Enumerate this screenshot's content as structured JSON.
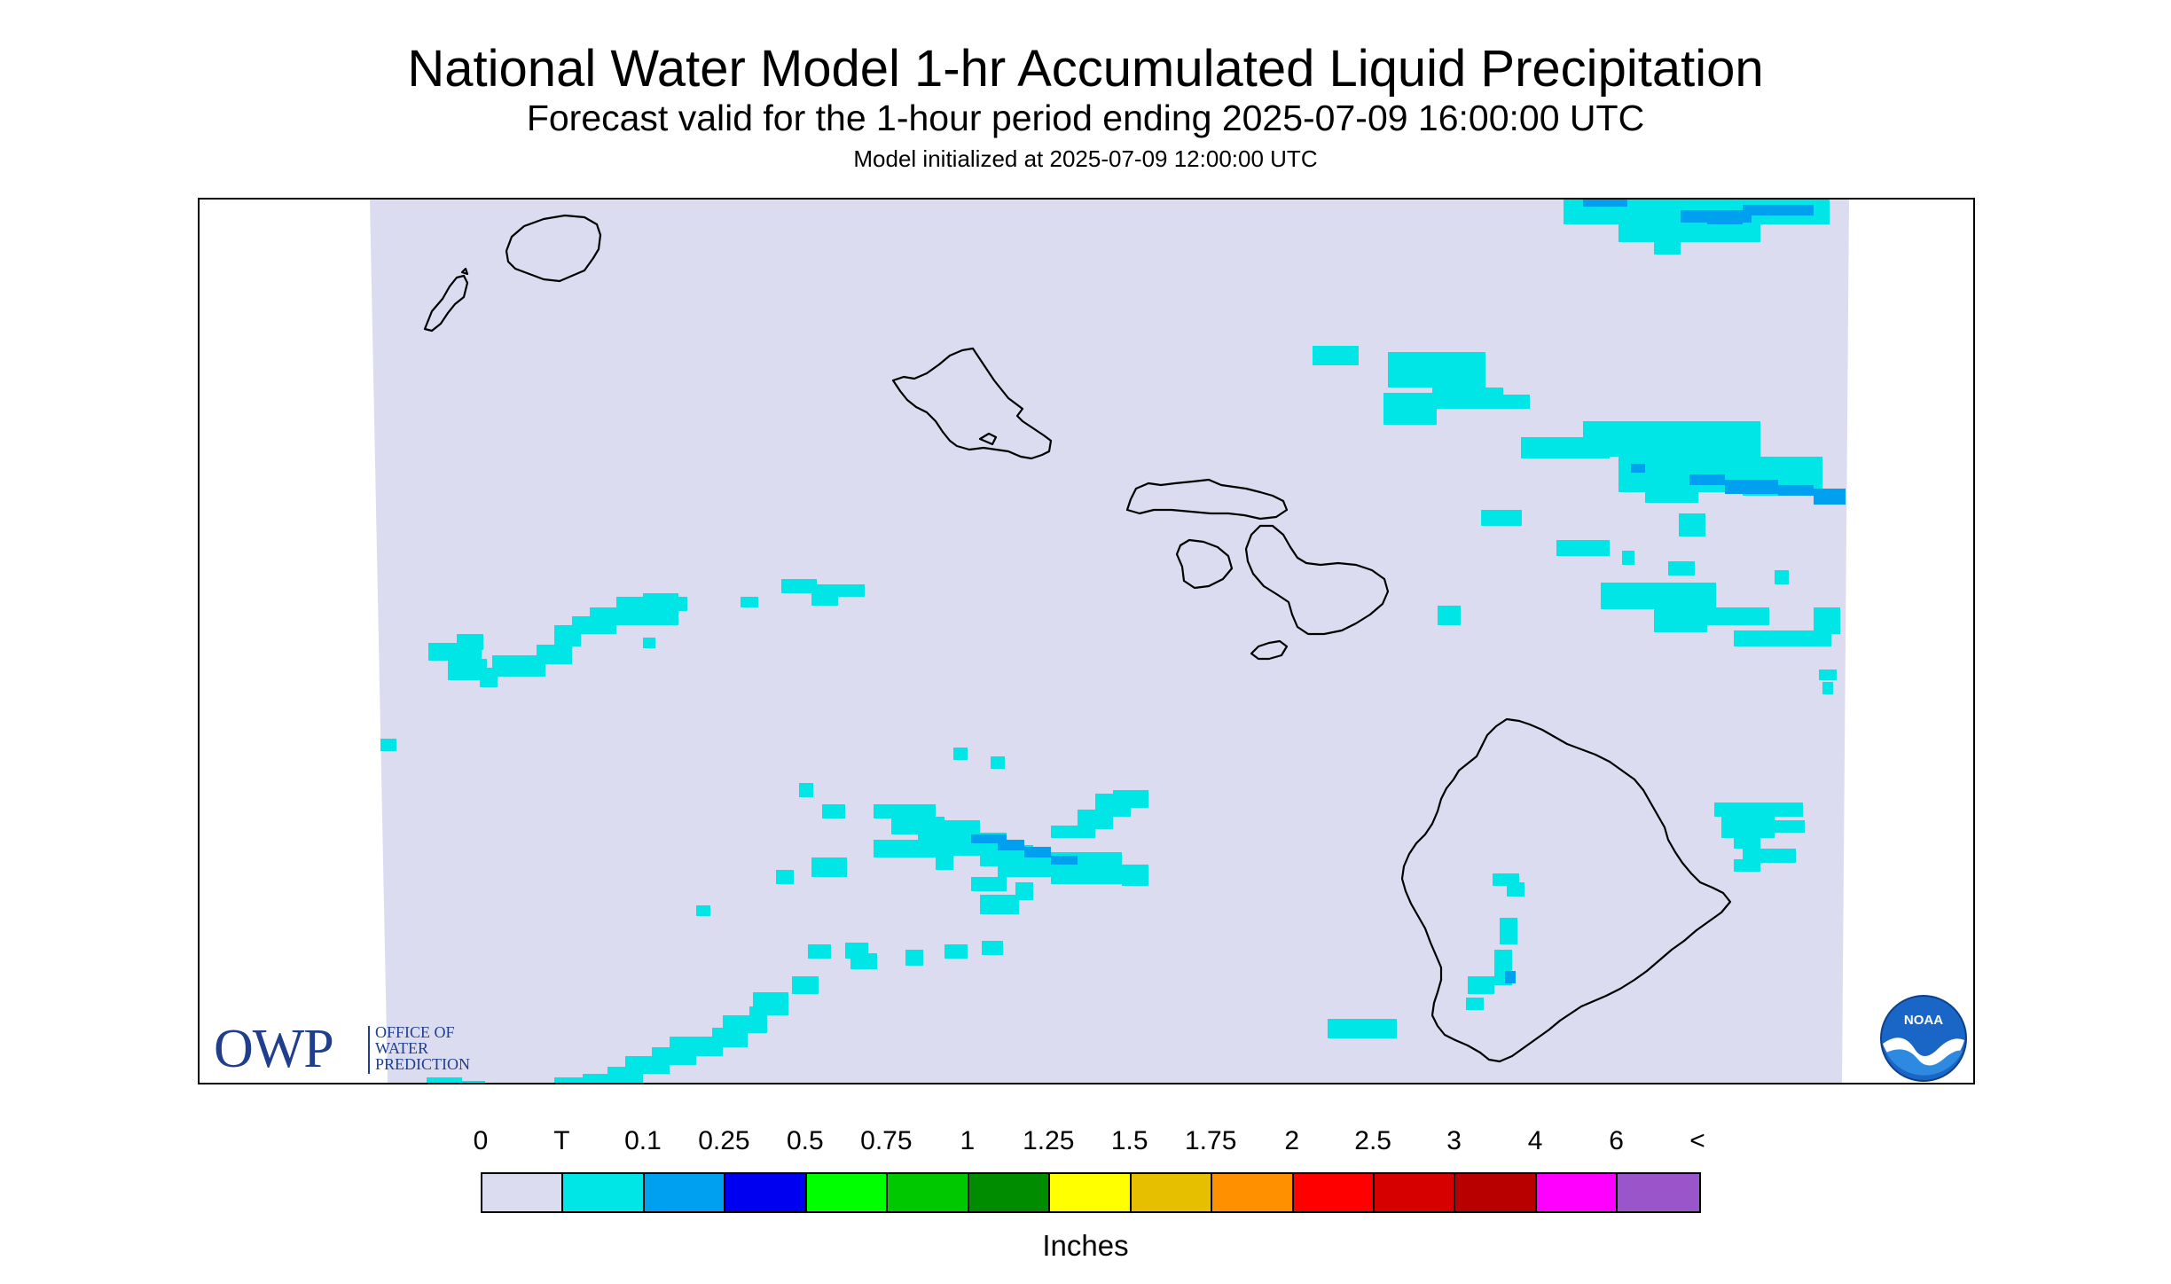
{
  "header": {
    "title": "National Water Model 1-hr Accumulated Liquid Precipitation",
    "subtitle": "Forecast valid for the 1-hour period ending 2025-07-09 16:00:00 UTC",
    "init_line": "Model initialized at 2025-07-09 12:00:00 UTC"
  },
  "map": {
    "region": "Hawaiian Islands",
    "domain_fill_color": "#dcdcf0",
    "outside_domain_color": "#ffffff",
    "coastline_color": "#000000",
    "islands": [
      {
        "name": "Niihau",
        "label_shown": false
      },
      {
        "name": "Kauai",
        "label_shown": false
      },
      {
        "name": "Oahu",
        "label_shown": false
      },
      {
        "name": "Molokai",
        "label_shown": false
      },
      {
        "name": "Lanai",
        "label_shown": false
      },
      {
        "name": "Maui",
        "label_shown": false
      },
      {
        "name": "Kahoolawe",
        "label_shown": false
      },
      {
        "name": "Hawaii",
        "label_shown": false
      }
    ],
    "precip_categories_present": [
      "T",
      "0.1"
    ]
  },
  "logos": {
    "owp": {
      "letters": "OWP",
      "lines": [
        "OFFICE OF",
        "WATER",
        "PREDICTION"
      ],
      "color": "#1f3e8c"
    },
    "noaa": {
      "text": "NOAA",
      "icon": "noaa-logo-icon"
    }
  },
  "legend": {
    "labels": [
      "0",
      "T",
      "0.1",
      "0.25",
      "0.5",
      "0.75",
      "1",
      "1.25",
      "1.5",
      "1.75",
      "2",
      "2.5",
      "3",
      "4",
      "6",
      "<"
    ],
    "colors": [
      "#dcdcf0",
      "#00e6e6",
      "#00a0f0",
      "#0000f0",
      "#00ff00",
      "#00c800",
      "#008c00",
      "#ffff00",
      "#e6c000",
      "#ff9000",
      "#ff0000",
      "#d70000",
      "#b90000",
      "#ff00ff",
      "#9955c9"
    ],
    "units": "Inches"
  }
}
